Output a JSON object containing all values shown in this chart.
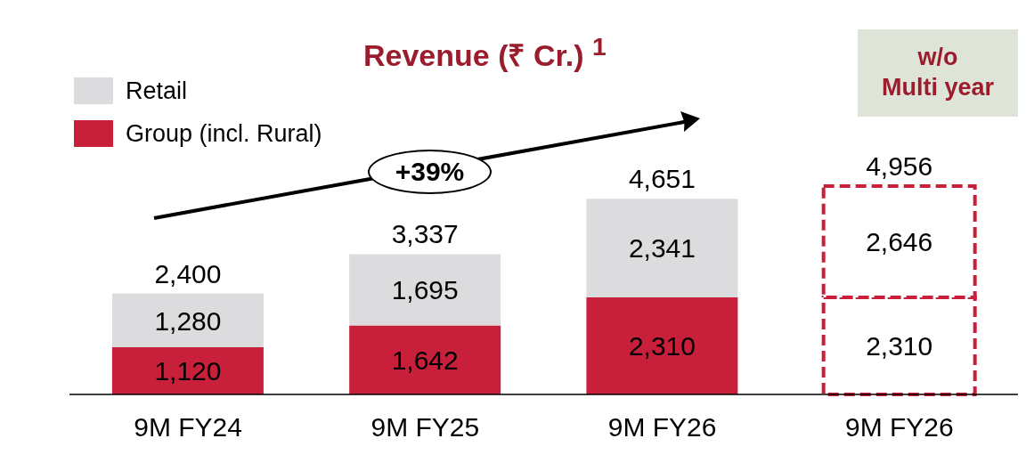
{
  "chart_data": {
    "type": "bar",
    "title": "Revenue (₹ Cr.) $^{1}$",
    "categories": [
      "9M FY24",
      "9M FY25",
      "9M FY26",
      "9M FY26"
    ],
    "stacked": true,
    "legend": "top left",
    "series": [
      {
        "name": "Group (incl. Rural)",
        "color": "#c8203a",
        "colors": [
          "#c8203a",
          "#c8203a",
          "#c8203a",
          "#ffffff"
        ],
        "values": [
          1120,
          1642,
          2310,
          2310
        ],
        "value_labels": [
          "1,120",
          "1,642",
          "2,310",
          "2,310"
        ]
      },
      {
        "name": "Retail",
        "color": "#dcdcde",
        "colors": [
          "#dcdcde",
          "#dcdcde",
          "#dcdcde",
          "#ffffff"
        ],
        "values": [
          1280,
          1695,
          2341,
          2646
        ],
        "value_labels": [
          "1,280",
          "1,695",
          "2,341",
          "2,646"
        ]
      }
    ],
    "totals": [
      "2,400",
      "3,337",
      "4,651",
      "4,956"
    ],
    "annotations": [
      "+39%",
      "w/o\nMulti year"
    ]
  }
}
